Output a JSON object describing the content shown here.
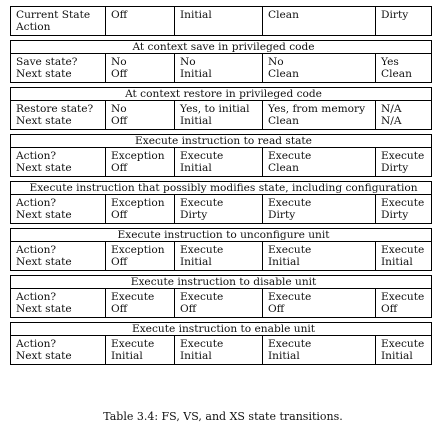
{
  "header": {
    "row1": [
      "Current State",
      "Off",
      "Initial",
      "Clean",
      "Dirty"
    ],
    "row2": [
      "Action",
      "",
      "",
      "",
      ""
    ]
  },
  "sections": [
    {
      "title": "At context save in privileged code",
      "rows": [
        [
          "Save state?",
          "No",
          "No",
          "No",
          "Yes"
        ],
        [
          "Next state",
          "Off",
          "Initial",
          "Clean",
          "Clean"
        ]
      ]
    },
    {
      "title": "At context restore in privileged code",
      "rows": [
        [
          "Restore state?",
          "No",
          "Yes, to initial",
          "Yes, from memory",
          "N/A"
        ],
        [
          "Next state",
          "Off",
          "Initial",
          "Clean",
          "N/A"
        ]
      ]
    },
    {
      "title": "Execute instruction to read state",
      "rows": [
        [
          "Action?",
          "Exception",
          "Execute",
          "Execute",
          "Execute"
        ],
        [
          "Next state",
          "Off",
          "Initial",
          "Clean",
          "Dirty"
        ]
      ]
    },
    {
      "title": "Execute instruction that possibly modifies state, including configuration",
      "rows": [
        [
          "Action?",
          "Exception",
          "Execute",
          "Execute",
          "Execute"
        ],
        [
          "Next state",
          "Off",
          "Dirty",
          "Dirty",
          "Dirty"
        ]
      ]
    },
    {
      "title": "Execute instruction to unconfigure unit",
      "rows": [
        [
          "Action?",
          "Exception",
          "Execute",
          "Execute",
          "Execute"
        ],
        [
          "Next state",
          "Off",
          "Initial",
          "Initial",
          "Initial"
        ]
      ]
    },
    {
      "title": "Execute instruction to disable unit",
      "rows": [
        [
          "Action?",
          "Execute",
          "Execute",
          "Execute",
          "Execute"
        ],
        [
          "Next state",
          "Off",
          "Off",
          "Off",
          "Off"
        ]
      ]
    },
    {
      "title": "Execute instruction to enable unit",
      "rows": [
        [
          "Action?",
          "Execute",
          "Execute",
          "Execute",
          "Execute"
        ],
        [
          "Next state",
          "Initial",
          "Initial",
          "Initial",
          "Initial"
        ]
      ]
    }
  ],
  "caption": "Table 3.4: FS, VS, and XS state transitions."
}
